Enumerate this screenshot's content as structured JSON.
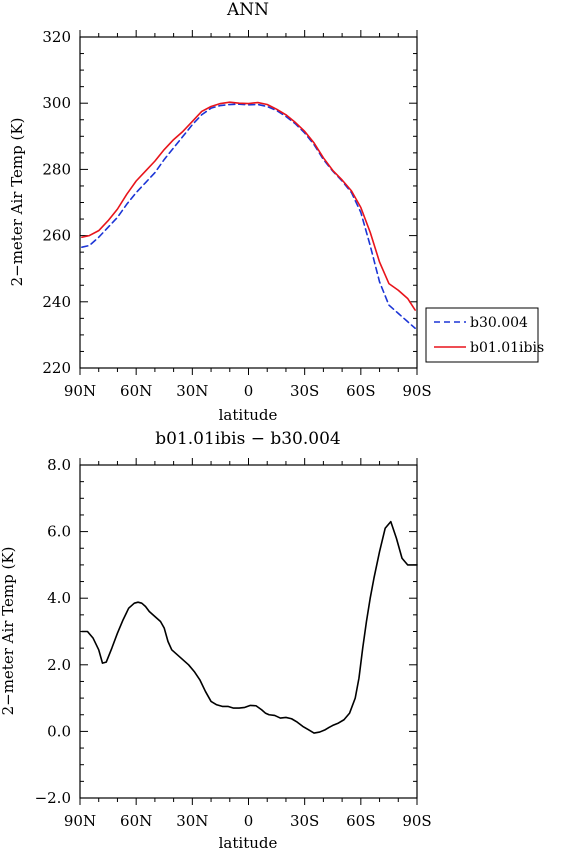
{
  "chart_data": [
    {
      "type": "line",
      "title": "ANN",
      "xlabel": "latitude",
      "ylabel": "2−meter Air Temp (K)",
      "xlim": [
        -90,
        90
      ],
      "ylim": [
        220,
        320
      ],
      "xticks": [
        -90,
        -60,
        -30,
        0,
        30,
        60,
        90
      ],
      "xtick_labels": [
        "90N",
        "60N",
        "30N",
        "0",
        "30S",
        "60S",
        "90S"
      ],
      "yticks": [
        220,
        240,
        260,
        280,
        300,
        320
      ],
      "ytick_labels": [
        "220",
        "240",
        "260",
        "280",
        "300",
        "320"
      ],
      "grid": false,
      "legend": "outside-right",
      "series": [
        {
          "name": "b30.004",
          "color": "#1c35d6",
          "dash": "dashed",
          "x": [
            -89,
            -85,
            -80,
            -75,
            -70,
            -65,
            -60,
            -55,
            -50,
            -45,
            -40,
            -35,
            -30,
            -25,
            -20,
            -15,
            -10,
            -5,
            0,
            5,
            10,
            15,
            20,
            25,
            30,
            35,
            40,
            45,
            50,
            55,
            60,
            65,
            70,
            75,
            80,
            85,
            89
          ],
          "y": [
            256.5,
            257.0,
            259.5,
            262.5,
            265.5,
            269.5,
            273.0,
            276.0,
            279.0,
            283.0,
            286.5,
            290.0,
            293.5,
            296.5,
            298.5,
            299.3,
            299.6,
            299.7,
            299.5,
            299.6,
            299.0,
            297.8,
            296.0,
            293.8,
            291.0,
            287.5,
            283.0,
            279.5,
            276.5,
            273.0,
            267.0,
            257.0,
            246.0,
            239.0,
            236.5,
            234.0,
            232.0
          ]
        },
        {
          "name": "b01.01ibis",
          "color": "#e8141b",
          "dash": "solid",
          "x": [
            -89,
            -85,
            -80,
            -75,
            -70,
            -65,
            -60,
            -55,
            -50,
            -45,
            -40,
            -35,
            -30,
            -25,
            -20,
            -15,
            -10,
            -5,
            0,
            5,
            10,
            15,
            20,
            25,
            30,
            35,
            40,
            45,
            50,
            55,
            60,
            65,
            70,
            75,
            80,
            85,
            89
          ],
          "y": [
            259.5,
            260.0,
            261.5,
            264.5,
            268.0,
            272.5,
            276.5,
            279.5,
            282.5,
            286.0,
            289.0,
            291.5,
            294.5,
            297.5,
            299.0,
            299.9,
            300.3,
            300.0,
            299.9,
            300.2,
            299.6,
            298.2,
            296.5,
            294.2,
            291.5,
            288.0,
            283.5,
            279.7,
            276.8,
            273.5,
            268.5,
            261.0,
            252.0,
            245.5,
            243.5,
            241.0,
            237.5
          ]
        }
      ]
    },
    {
      "type": "line",
      "title": "b01.01ibis − b30.004",
      "xlabel": "latitude",
      "ylabel": "2−meter Air Temp (K)",
      "xlim": [
        -90,
        90
      ],
      "ylim": [
        -2.0,
        8.0
      ],
      "xticks": [
        -90,
        -60,
        -30,
        0,
        30,
        60,
        90
      ],
      "xtick_labels": [
        "90N",
        "60N",
        "30N",
        "0",
        "30S",
        "60S",
        "90S"
      ],
      "yticks": [
        -2.0,
        0.0,
        2.0,
        4.0,
        6.0,
        8.0
      ],
      "ytick_labels": [
        "−2.0",
        "0.0",
        "2.0",
        "4.0",
        "6.0",
        "8.0"
      ],
      "grid": false,
      "series": [
        {
          "color": "#000000",
          "dash": "solid",
          "x": [
            -89,
            -86,
            -83,
            -80,
            -78,
            -76,
            -73,
            -70,
            -67,
            -64,
            -61,
            -59,
            -57,
            -55,
            -53,
            -50,
            -47,
            -45,
            -43,
            -41,
            -38,
            -35,
            -32,
            -29,
            -26,
            -23,
            -20,
            -17,
            -14,
            -11,
            -8,
            -5,
            -2,
            1,
            4,
            7,
            9,
            11,
            14,
            17,
            20,
            23,
            26,
            29,
            32,
            35,
            38,
            41,
            43,
            45,
            48,
            51,
            54,
            57,
            59,
            61,
            63,
            65,
            67,
            70,
            73,
            76,
            79,
            82,
            85,
            88,
            90
          ],
          "y": [
            3.0,
            3.0,
            2.8,
            2.45,
            2.05,
            2.08,
            2.5,
            2.95,
            3.35,
            3.7,
            3.85,
            3.88,
            3.85,
            3.75,
            3.6,
            3.45,
            3.3,
            3.1,
            2.7,
            2.45,
            2.3,
            2.15,
            2.0,
            1.8,
            1.55,
            1.2,
            0.9,
            0.8,
            0.75,
            0.75,
            0.7,
            0.7,
            0.72,
            0.78,
            0.77,
            0.65,
            0.55,
            0.5,
            0.48,
            0.4,
            0.42,
            0.38,
            0.28,
            0.15,
            0.05,
            -0.05,
            -0.02,
            0.05,
            0.12,
            0.18,
            0.25,
            0.35,
            0.55,
            1.0,
            1.6,
            2.5,
            3.3,
            4.0,
            4.6,
            5.4,
            6.1,
            6.3,
            5.8,
            5.2,
            5.0,
            5.0,
            5.0
          ]
        }
      ]
    }
  ]
}
